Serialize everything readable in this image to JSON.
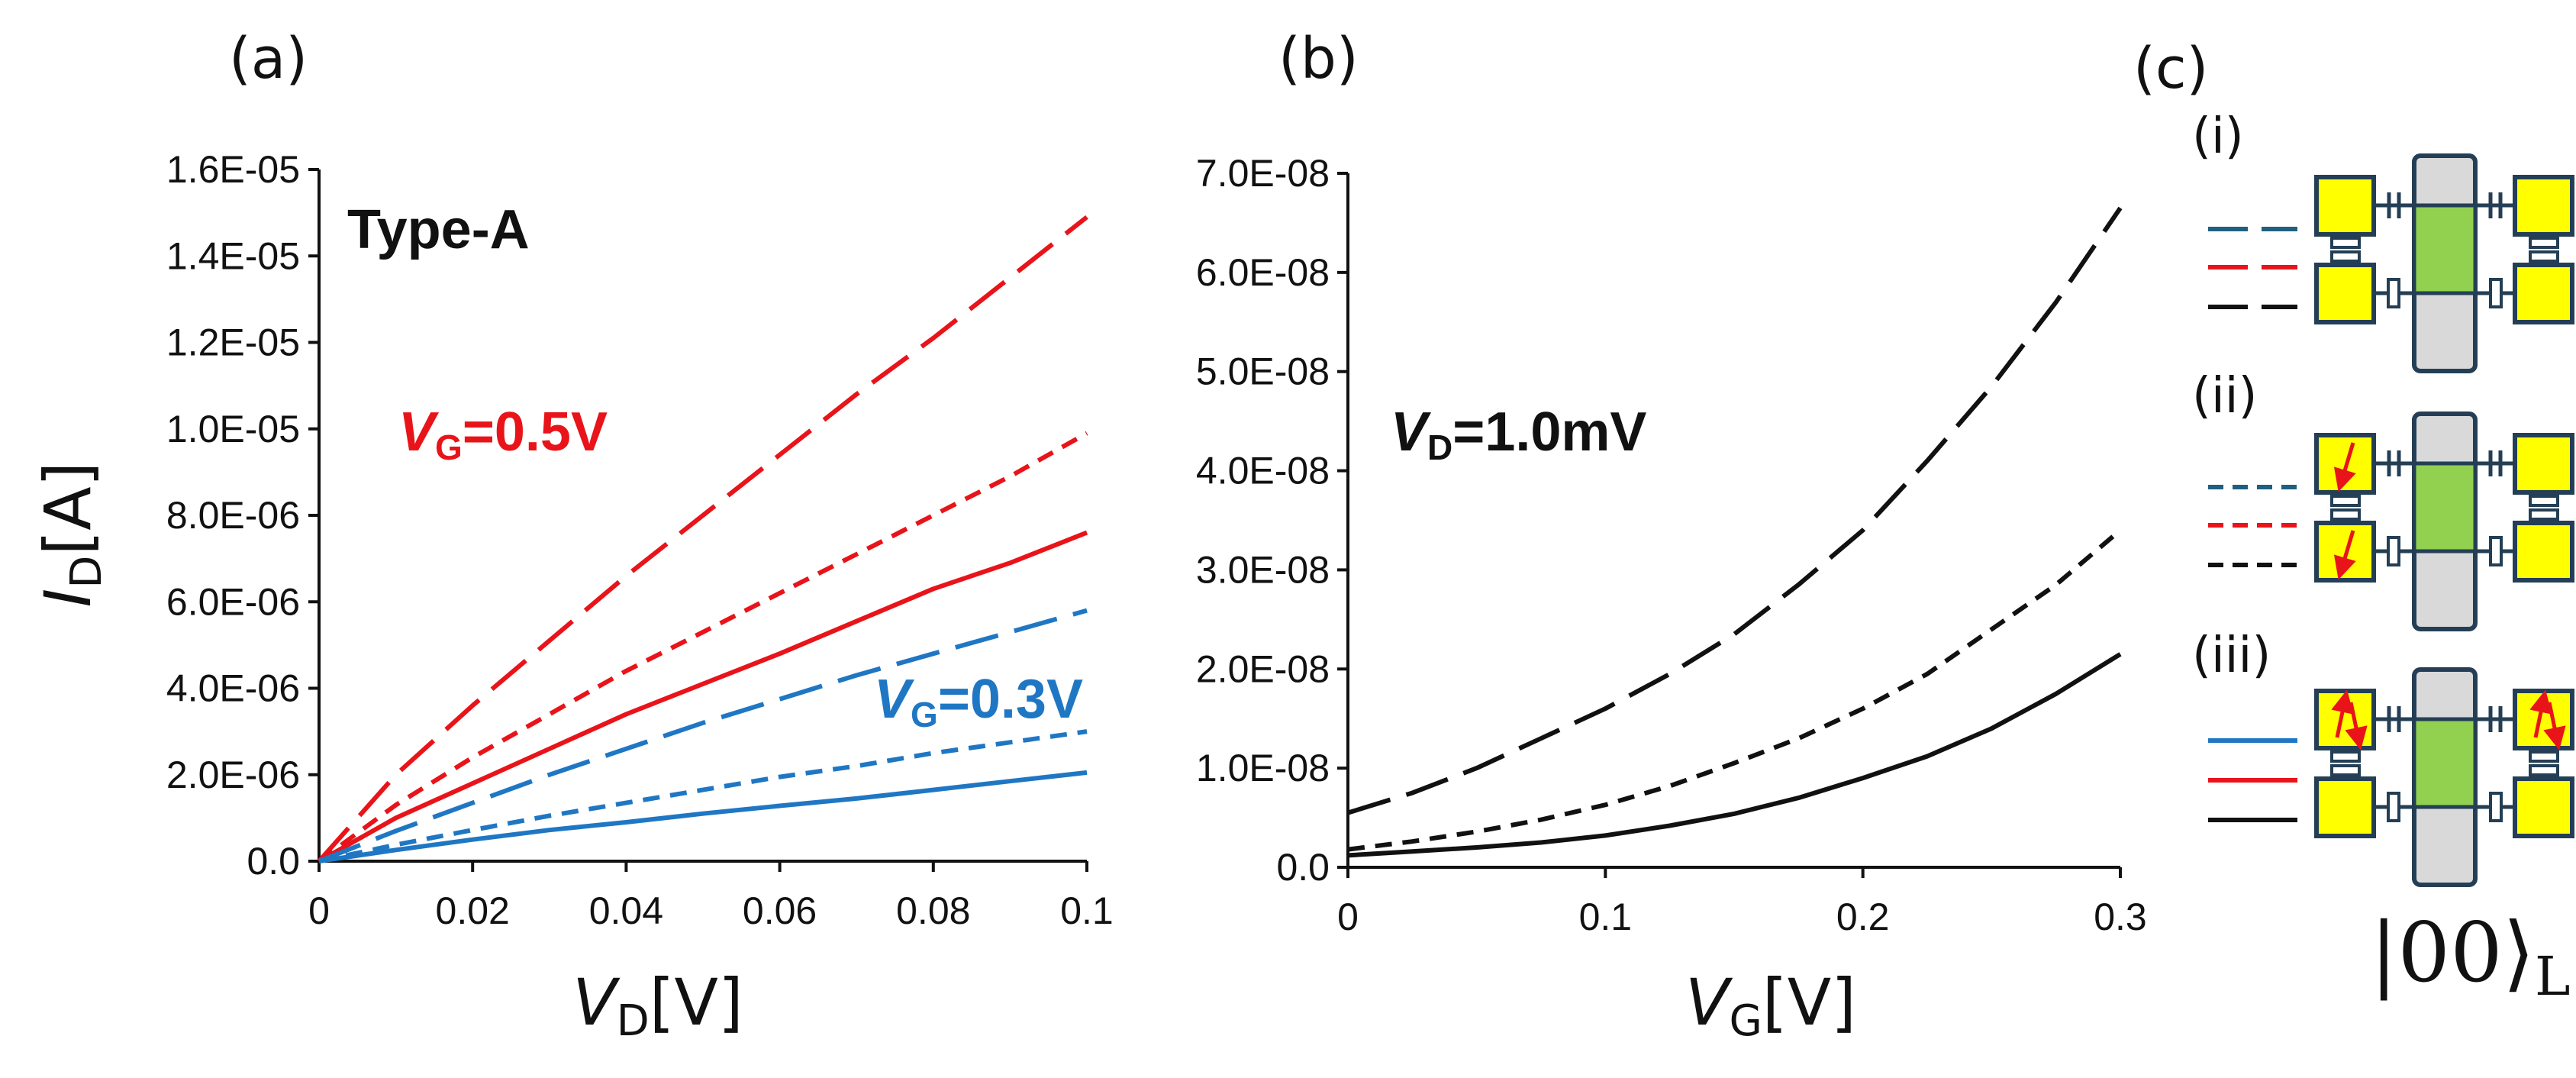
{
  "colors": {
    "red": "#e8141a",
    "blue": "#1f77c4",
    "black": "#111111",
    "qd_yellow": "#ffff00",
    "channel_green": "#92d050",
    "gate_gray": "#d9d9d9",
    "outline": "#243f55"
  },
  "panels": {
    "a": "(a)",
    "b": "(b)",
    "c": "(c)"
  },
  "chart_data": [
    {
      "id": "a",
      "type": "line",
      "title": "Type-A",
      "xlabel": {
        "main": "V",
        "sub": "D",
        "unit": "[V]"
      },
      "ylabel": {
        "main": "I",
        "sub": "D",
        "unit": "[A]"
      },
      "xlim": [
        0,
        0.1
      ],
      "ylim": [
        0,
        1.6e-05
      ],
      "xticks": [
        0,
        0.02,
        0.04,
        0.06,
        0.08,
        0.1
      ],
      "xtick_labels": [
        "0",
        "0.02",
        "0.04",
        "0.06",
        "0.08",
        "0.1"
      ],
      "yticks": [
        0,
        2e-06,
        4e-06,
        6e-06,
        8e-06,
        1e-05,
        1.2e-05,
        1.4e-05,
        1.6e-05
      ],
      "ytick_labels": [
        "0.0",
        "2.0E-06",
        "4.0E-06",
        "6.0E-06",
        "8.0E-06",
        "1.0E-05",
        "1.2E-05",
        "1.4E-05",
        "1.6E-05"
      ],
      "annotations": [
        {
          "id": "vg05",
          "main": "V",
          "sub": "G",
          "rest": "=0.5V",
          "color": "red"
        },
        {
          "id": "vg03",
          "main": "V",
          "sub": "G",
          "rest": "=0.3V",
          "color": "blue"
        }
      ],
      "series": [
        {
          "name": "VG=0.5V (i) long dash",
          "color": "red",
          "dash": "long",
          "x": [
            0,
            0.01,
            0.02,
            0.03,
            0.04,
            0.05,
            0.06,
            0.07,
            0.08,
            0.09,
            0.1
          ],
          "y": [
            0,
            2e-06,
            3.6e-06,
            5.1e-06,
            6.6e-06,
            8e-06,
            9.4e-06,
            1.08e-05,
            1.21e-05,
            1.35e-05,
            1.49e-05
          ]
        },
        {
          "name": "VG=0.5V (ii) short dash",
          "color": "red",
          "dash": "short",
          "x": [
            0,
            0.01,
            0.02,
            0.03,
            0.04,
            0.05,
            0.06,
            0.07,
            0.08,
            0.09,
            0.1
          ],
          "y": [
            0,
            1.3e-06,
            2.4e-06,
            3.4e-06,
            4.4e-06,
            5.3e-06,
            6.2e-06,
            7.1e-06,
            8e-06,
            8.9e-06,
            9.9e-06
          ]
        },
        {
          "name": "VG=0.5V (iii) solid",
          "color": "red",
          "dash": "solid",
          "x": [
            0,
            0.01,
            0.02,
            0.03,
            0.04,
            0.05,
            0.06,
            0.07,
            0.08,
            0.09,
            0.1
          ],
          "y": [
            0,
            1e-06,
            1.8e-06,
            2.6e-06,
            3.4e-06,
            4.1e-06,
            4.8e-06,
            5.55e-06,
            6.3e-06,
            6.9e-06,
            7.6e-06
          ]
        },
        {
          "name": "VG=0.3V (i) long dash",
          "color": "blue",
          "dash": "long",
          "x": [
            0,
            0.01,
            0.02,
            0.03,
            0.04,
            0.05,
            0.06,
            0.07,
            0.08,
            0.09,
            0.1
          ],
          "y": [
            0,
            7e-07,
            1.35e-06,
            2e-06,
            2.6e-06,
            3.2e-06,
            3.75e-06,
            4.3e-06,
            4.8e-06,
            5.3e-06,
            5.8e-06
          ]
        },
        {
          "name": "VG=0.3V (ii) short dash",
          "color": "blue",
          "dash": "short",
          "x": [
            0,
            0.01,
            0.02,
            0.03,
            0.04,
            0.05,
            0.06,
            0.07,
            0.08,
            0.09,
            0.1
          ],
          "y": [
            0,
            3.8e-07,
            7.2e-07,
            1.05e-06,
            1.35e-06,
            1.65e-06,
            1.95e-06,
            2.2e-06,
            2.5e-06,
            2.75e-06,
            3e-06
          ]
        },
        {
          "name": "VG=0.3V (iii) solid",
          "color": "blue",
          "dash": "solid",
          "x": [
            0,
            0.01,
            0.02,
            0.03,
            0.04,
            0.05,
            0.06,
            0.07,
            0.08,
            0.09,
            0.1
          ],
          "y": [
            0,
            2.6e-07,
            5e-07,
            7.2e-07,
            9e-07,
            1.1e-06,
            1.28e-06,
            1.45e-06,
            1.65e-06,
            1.85e-06,
            2.05e-06
          ]
        }
      ]
    },
    {
      "id": "b",
      "type": "line",
      "title": "",
      "xlabel": {
        "main": "V",
        "sub": "G",
        "unit": "[V]"
      },
      "ylabel": null,
      "xlim": [
        0,
        0.3
      ],
      "ylim": [
        0,
        7e-08
      ],
      "xticks": [
        0,
        0.1,
        0.2,
        0.3
      ],
      "xtick_labels": [
        "0",
        "0.1",
        "0.2",
        "0.3"
      ],
      "yticks": [
        0,
        1e-08,
        2e-08,
        3e-08,
        4e-08,
        5e-08,
        6e-08,
        7e-08
      ],
      "ytick_labels": [
        "0.0",
        "1.0E-08",
        "2.0E-08",
        "3.0E-08",
        "4.0E-08",
        "5.0E-08",
        "6.0E-08",
        "7.0E-08"
      ],
      "annotations": [
        {
          "id": "vd",
          "main": "V",
          "sub": "D",
          "rest": "=1.0mV",
          "color": "black"
        }
      ],
      "series": [
        {
          "name": "(i) long dash",
          "color": "black",
          "dash": "long",
          "x": [
            0,
            0.025,
            0.05,
            0.075,
            0.1,
            0.125,
            0.15,
            0.175,
            0.2,
            0.225,
            0.25,
            0.275,
            0.3
          ],
          "y": [
            5.5e-09,
            7.5e-09,
            1e-08,
            1.3e-08,
            1.6e-08,
            1.95e-08,
            2.35e-08,
            2.85e-08,
            3.4e-08,
            4.1e-08,
            4.85e-08,
            5.7e-08,
            6.65e-08
          ]
        },
        {
          "name": "(ii) short dash",
          "color": "black",
          "dash": "short",
          "x": [
            0,
            0.025,
            0.05,
            0.075,
            0.1,
            0.125,
            0.15,
            0.175,
            0.2,
            0.225,
            0.25,
            0.275,
            0.3
          ],
          "y": [
            1.8e-09,
            2.6e-09,
            3.6e-09,
            4.8e-09,
            6.3e-09,
            8.2e-09,
            1.05e-08,
            1.3e-08,
            1.6e-08,
            1.95e-08,
            2.4e-08,
            2.85e-08,
            3.4e-08
          ]
        },
        {
          "name": "(iii) solid",
          "color": "black",
          "dash": "solid",
          "x": [
            0,
            0.025,
            0.05,
            0.075,
            0.1,
            0.125,
            0.15,
            0.175,
            0.2,
            0.225,
            0.25,
            0.275,
            0.3
          ],
          "y": [
            1.2e-09,
            1.6e-09,
            2e-09,
            2.5e-09,
            3.2e-09,
            4.2e-09,
            5.4e-09,
            7e-09,
            9e-09,
            1.12e-08,
            1.4e-08,
            1.75e-08,
            2.15e-08
          ]
        }
      ]
    }
  ],
  "schematic": {
    "rows": [
      {
        "label": "(i)",
        "dash": "long",
        "spins": "none"
      },
      {
        "label": "(ii)",
        "dash": "short",
        "spins": "left-down"
      },
      {
        "label": "(iii)",
        "dash": "solid",
        "spins": "both-up-down"
      }
    ],
    "legend_colors": [
      "blue",
      "red",
      "black"
    ],
    "state_label": "|00⟩",
    "state_sub": "L"
  }
}
